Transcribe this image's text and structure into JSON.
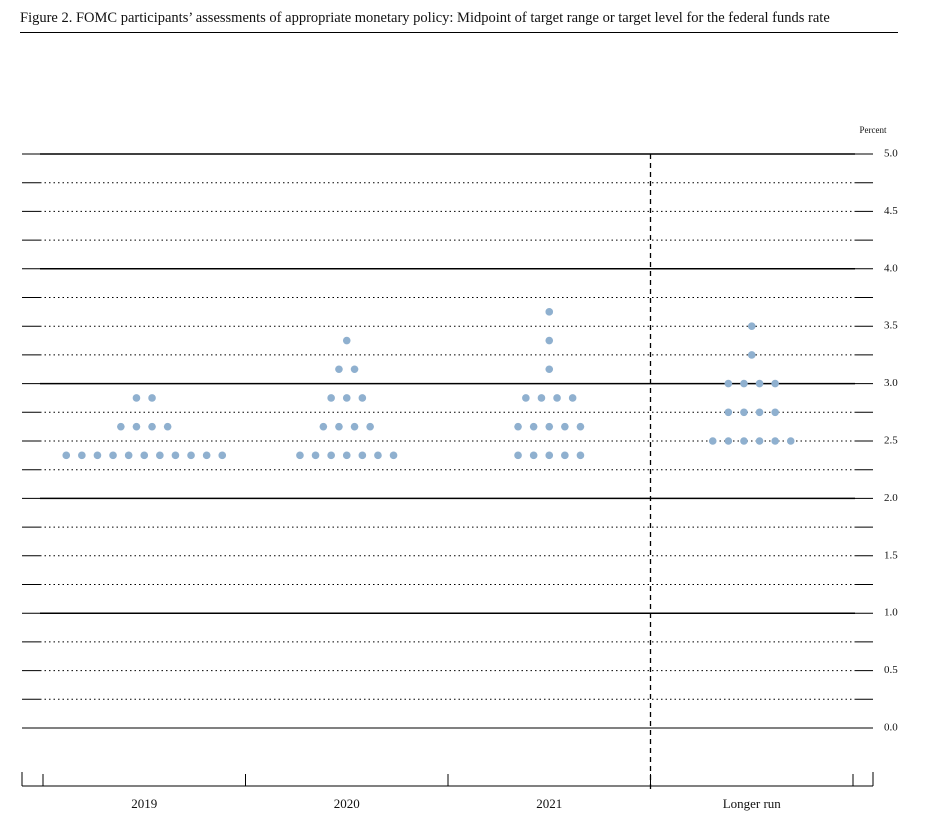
{
  "chart_data": {
    "type": "dot",
    "title": "Figure 2. FOMC participants’ assessments of appropriate monetary policy: Midpoint of target range or target level for the federal funds rate",
    "y_label": "Percent",
    "categories": [
      "2019",
      "2020",
      "2021",
      "Longer run"
    ],
    "values": [
      [
        2.375,
        2.375,
        2.375,
        2.375,
        2.375,
        2.375,
        2.375,
        2.375,
        2.375,
        2.375,
        2.375,
        2.625,
        2.625,
        2.625,
        2.625,
        2.875,
        2.875
      ],
      [
        2.375,
        2.375,
        2.375,
        2.375,
        2.375,
        2.375,
        2.375,
        2.625,
        2.625,
        2.625,
        2.625,
        2.875,
        2.875,
        2.875,
        3.125,
        3.125,
        3.375
      ],
      [
        2.375,
        2.375,
        2.375,
        2.375,
        2.375,
        2.625,
        2.625,
        2.625,
        2.625,
        2.625,
        2.875,
        2.875,
        2.875,
        2.875,
        3.125,
        3.375,
        3.625
      ],
      [
        2.5,
        2.5,
        2.5,
        2.5,
        2.5,
        2.5,
        2.75,
        2.75,
        2.75,
        2.75,
        3.0,
        3.0,
        3.0,
        3.0,
        3.25,
        3.5
      ]
    ],
    "color": "#8fb0cf",
    "ylim": [
      0,
      5
    ],
    "yticks": [
      {
        "value": 0,
        "label": "0.0"
      },
      {
        "value": 0.5,
        "label": "0.5"
      },
      {
        "value": 1,
        "label": "1.0"
      },
      {
        "value": 1.5,
        "label": "1.5"
      },
      {
        "value": 2,
        "label": "2.0"
      },
      {
        "value": 2.5,
        "label": "2.5"
      },
      {
        "value": 3,
        "label": "3.0"
      },
      {
        "value": 3.5,
        "label": "3.5"
      },
      {
        "value": 4,
        "label": "4.0"
      },
      {
        "value": 4.5,
        "label": "4.5"
      },
      {
        "value": 5,
        "label": "5.0"
      }
    ],
    "yminorticks": [
      0.25,
      0.75,
      1.25,
      1.75,
      2.25,
      2.75,
      3.25,
      3.75,
      4.25,
      4.75
    ],
    "grid": true
  }
}
